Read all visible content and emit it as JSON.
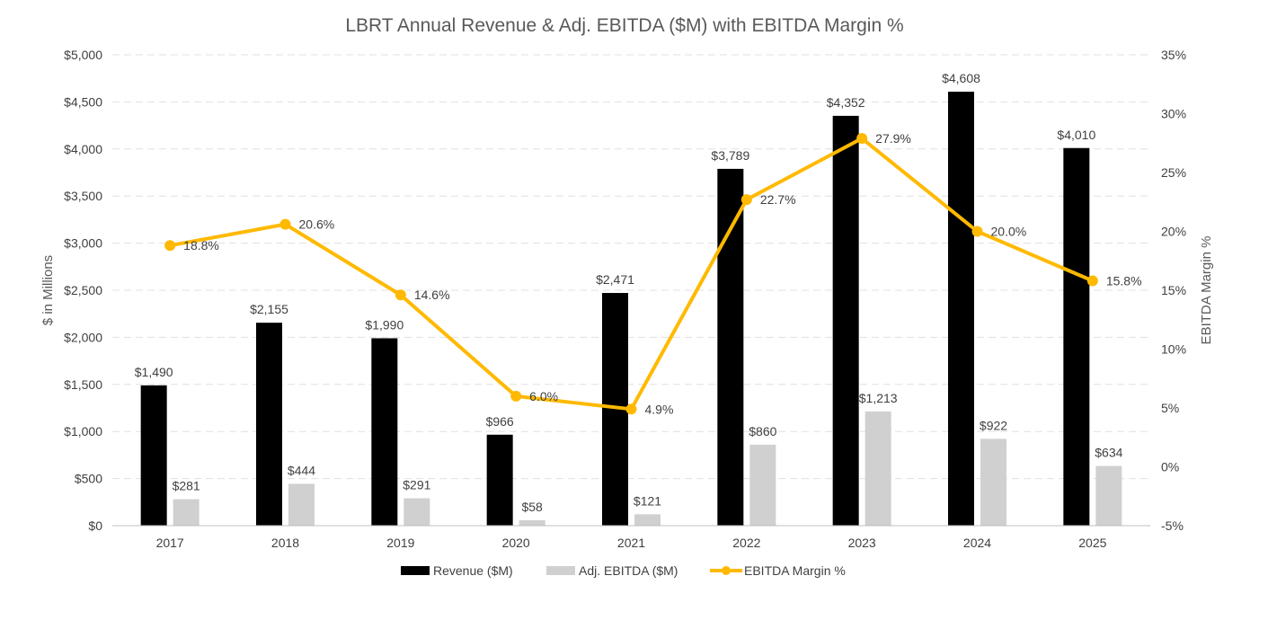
{
  "chart_data": {
    "type": "bar",
    "title": "LBRT Annual Revenue & Adj. EBITDA ($M) with EBITDA Margin %",
    "categories": [
      "2017",
      "2018",
      "2019",
      "2020",
      "2021",
      "2022",
      "2023",
      "2024",
      "2025"
    ],
    "series": [
      {
        "name": "Revenue ($M)",
        "type": "bar",
        "axis": "left",
        "color": "#000000",
        "values": [
          1490,
          2155,
          1990,
          966,
          2471,
          3789,
          4352,
          4608,
          4010
        ],
        "labels": [
          "$1,490",
          "$2,155",
          "$1,990",
          "$966",
          "$2,471",
          "$3,789",
          "$4,352",
          "$4,608",
          "$4,010"
        ]
      },
      {
        "name": "Adj. EBITDA ($M)",
        "type": "bar",
        "axis": "left",
        "color": "#D0D0D0",
        "values": [
          281,
          444,
          291,
          58,
          121,
          860,
          1213,
          922,
          634
        ],
        "labels": [
          "$281",
          "$444",
          "$291",
          "$58",
          "$121",
          "$860",
          "$1,213",
          "$922",
          "$634"
        ]
      },
      {
        "name": "EBITDA Margin %",
        "type": "line",
        "axis": "right",
        "color": "#FFB900",
        "values": [
          18.8,
          20.6,
          14.6,
          6.0,
          4.9,
          22.7,
          27.9,
          20.0,
          15.8
        ],
        "labels": [
          "18.8%",
          "20.6%",
          "14.6%",
          "6.0%",
          "4.9%",
          "22.7%",
          "27.9%",
          "20.0%",
          "15.8%"
        ]
      }
    ],
    "ylabel": "$ in Millions",
    "y2label": "EBITDA Margin %",
    "ylim": [
      0,
      5000
    ],
    "y2lim": [
      -5,
      35
    ],
    "yticks": [
      0,
      500,
      1000,
      1500,
      2000,
      2500,
      3000,
      3500,
      4000,
      4500,
      5000
    ],
    "ytick_labels": [
      "$0",
      "$500",
      "$1,000",
      "$1,500",
      "$2,000",
      "$2,500",
      "$3,000",
      "$3,500",
      "$4,000",
      "$4,500",
      "$5,000"
    ],
    "y2ticks": [
      -5,
      0,
      5,
      10,
      15,
      20,
      25,
      30,
      35
    ],
    "y2tick_labels": [
      "-5%",
      "0%",
      "5%",
      "10%",
      "15%",
      "20%",
      "25%",
      "30%",
      "35%"
    ],
    "grid": true,
    "legend": "bottom"
  }
}
